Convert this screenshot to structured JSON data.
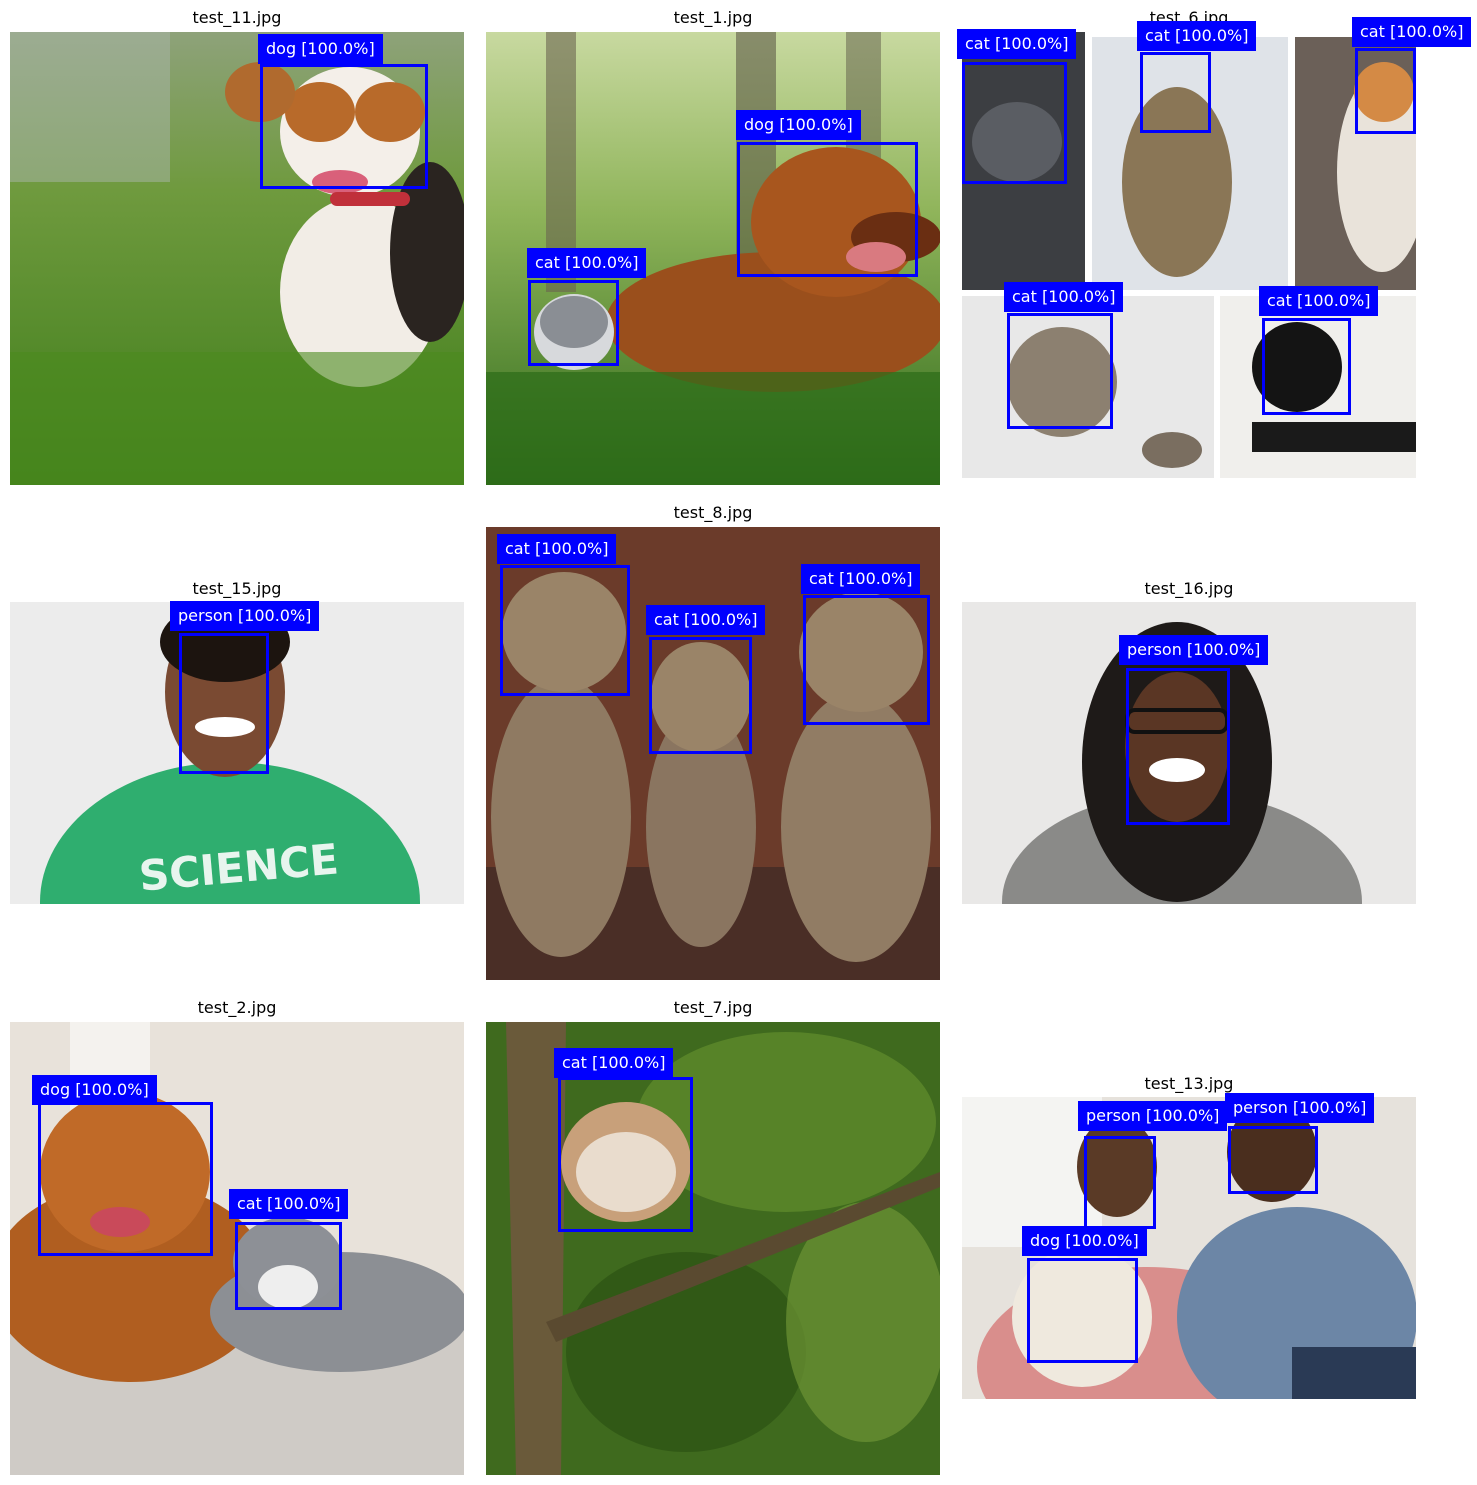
{
  "panels": [
    {
      "id": "test_11",
      "title": "test_11.jpg",
      "detections": [
        {
          "label": "dog [100.0%]"
        }
      ]
    },
    {
      "id": "test_1",
      "title": "test_1.jpg",
      "detections": [
        {
          "label": "dog [100.0%]"
        },
        {
          "label": "cat [100.0%]"
        }
      ]
    },
    {
      "id": "test_6",
      "title": "test_6.jpg",
      "detections": [
        {
          "label": "cat [100.0%]"
        },
        {
          "label": "cat [100.0%]"
        },
        {
          "label": "cat [100.0%]"
        },
        {
          "label": "cat [100.0%]"
        },
        {
          "label": "cat [100.0%]"
        }
      ]
    },
    {
      "id": "test_15",
      "title": "test_15.jpg",
      "detections": [
        {
          "label": "person [100.0%]"
        }
      ]
    },
    {
      "id": "test_8",
      "title": "test_8.jpg",
      "detections": [
        {
          "label": "cat [100.0%]"
        },
        {
          "label": "cat [100.0%]"
        },
        {
          "label": "cat [100.0%]"
        }
      ]
    },
    {
      "id": "test_16",
      "title": "test_16.jpg",
      "detections": [
        {
          "label": "person [100.0%]"
        }
      ]
    },
    {
      "id": "test_2",
      "title": "test_2.jpg",
      "detections": [
        {
          "label": "dog [100.0%]"
        },
        {
          "label": "cat [100.0%]"
        }
      ]
    },
    {
      "id": "test_7",
      "title": "test_7.jpg",
      "detections": [
        {
          "label": "cat [100.0%]"
        }
      ]
    },
    {
      "id": "test_13",
      "title": "test_13.jpg",
      "detections": [
        {
          "label": "person [100.0%]"
        },
        {
          "label": "person [100.0%]"
        },
        {
          "label": "dog [100.0%]"
        }
      ]
    }
  ],
  "colors": {
    "box": "#0000ff",
    "label_text": "#ffffff"
  }
}
